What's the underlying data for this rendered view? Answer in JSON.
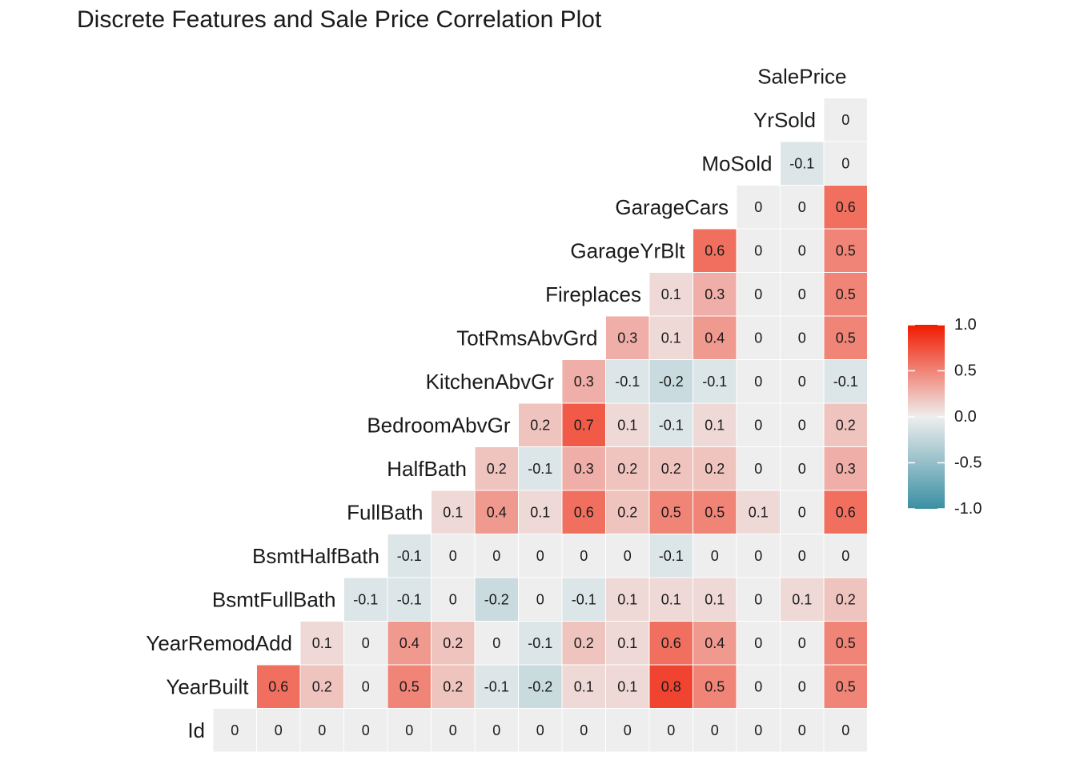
{
  "title": "Discrete Features and Sale Price Correlation Plot",
  "chart_data": {
    "type": "heatmap",
    "title": "Discrete Features and Sale Price Correlation Plot",
    "layout": "lower-triangle",
    "variables": [
      "Id",
      "YearBuilt",
      "YearRemodAdd",
      "BsmtFullBath",
      "BsmtHalfBath",
      "FullBath",
      "HalfBath",
      "BedroomAbvGr",
      "KitchenAbvGr",
      "TotRmsAbvGrd",
      "Fireplaces",
      "GarageYrBlt",
      "GarageCars",
      "MoSold",
      "YrSold",
      "SalePrice"
    ],
    "rows": [
      {
        "variable": "Id",
        "values": [
          0,
          0,
          0,
          0,
          0,
          0,
          0,
          0,
          0,
          0,
          0,
          0,
          0,
          0,
          0
        ]
      },
      {
        "variable": "YearBuilt",
        "values": [
          0.6,
          0.2,
          0,
          0.5,
          0.2,
          -0.1,
          -0.2,
          0.1,
          0.1,
          0.8,
          0.5,
          0,
          0,
          0.5
        ]
      },
      {
        "variable": "YearRemodAdd",
        "values": [
          0.1,
          0,
          0.4,
          0.2,
          0,
          -0.1,
          0.2,
          0.1,
          0.6,
          0.4,
          0,
          0,
          0.5
        ]
      },
      {
        "variable": "BsmtFullBath",
        "values": [
          -0.1,
          -0.1,
          0,
          -0.2,
          0,
          -0.1,
          0.1,
          0.1,
          0.1,
          0,
          0.1,
          0.2
        ]
      },
      {
        "variable": "BsmtHalfBath",
        "values": [
          -0.1,
          0,
          0,
          0,
          0,
          0,
          -0.1,
          0,
          0,
          0,
          0
        ]
      },
      {
        "variable": "FullBath",
        "values": [
          0.1,
          0.4,
          0.1,
          0.6,
          0.2,
          0.5,
          0.5,
          0.1,
          0,
          0.6
        ]
      },
      {
        "variable": "HalfBath",
        "values": [
          0.2,
          -0.1,
          0.3,
          0.2,
          0.2,
          0.2,
          0,
          0,
          0.3
        ]
      },
      {
        "variable": "BedroomAbvGr",
        "values": [
          0.2,
          0.7,
          0.1,
          -0.1,
          0.1,
          0,
          0,
          0.2
        ]
      },
      {
        "variable": "KitchenAbvGr",
        "values": [
          0.3,
          -0.1,
          -0.2,
          -0.1,
          0,
          0,
          -0.1
        ]
      },
      {
        "variable": "TotRmsAbvGrd",
        "values": [
          0.3,
          0.1,
          0.4,
          0,
          0,
          0.5
        ]
      },
      {
        "variable": "Fireplaces",
        "values": [
          0.1,
          0.3,
          0,
          0,
          0.5
        ]
      },
      {
        "variable": "GarageYrBlt",
        "values": [
          0.6,
          0,
          0,
          0.5
        ]
      },
      {
        "variable": "GarageCars",
        "values": [
          0,
          0,
          0.6
        ]
      },
      {
        "variable": "MoSold",
        "values": [
          -0.1,
          0
        ]
      },
      {
        "variable": "YrSold",
        "values": [
          0
        ]
      },
      {
        "variable": "SalePrice",
        "values": []
      }
    ],
    "legend": {
      "position": "right",
      "range": [
        -1,
        1
      ],
      "ticks": [
        "1.0",
        "0.5",
        "0.0",
        "-0.5",
        "-1.0"
      ],
      "colors": {
        "low": "#3A8FA3",
        "mid": "#EEEEEE",
        "high": "#F21A00"
      }
    },
    "grid": false
  }
}
